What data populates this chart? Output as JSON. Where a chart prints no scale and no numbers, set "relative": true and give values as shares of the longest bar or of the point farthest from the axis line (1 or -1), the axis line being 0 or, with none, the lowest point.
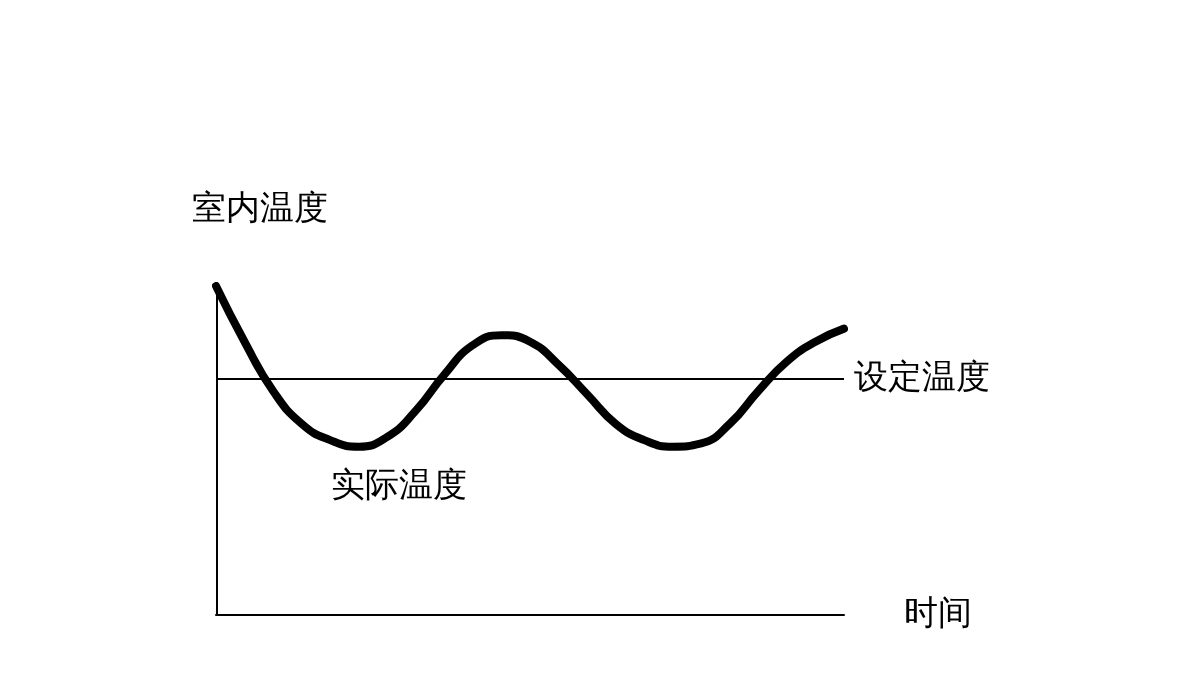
{
  "chart_data": {
    "type": "line",
    "relative": true,
    "ylabel": "室内温度",
    "xlabel": "时间",
    "legend": false,
    "grid": false,
    "marker": "none",
    "line_style": "solid",
    "categories": [
      null,
      null,
      null,
      null,
      null,
      null,
      null,
      null,
      null,
      null,
      null,
      null,
      null,
      null,
      null,
      null,
      null,
      null,
      null,
      null,
      null,
      null,
      null
    ],
    "series": [
      {
        "name": "实际温度",
        "color": "#000000",
        "values": [
          1.0,
          0.83,
          0.68,
          0.58,
          0.53,
          0.51,
          0.54,
          0.62,
          0.73,
          0.82,
          0.85,
          0.83,
          0.76,
          0.67,
          0.58,
          0.53,
          0.51,
          0.52,
          0.58,
          0.68,
          0.77,
          0.83,
          0.87
        ]
      }
    ],
    "ref_lines": [
      {
        "axis": "y",
        "value": 0.72,
        "label": "设定温度",
        "color": "#000000",
        "line_style": "solid"
      }
    ]
  }
}
